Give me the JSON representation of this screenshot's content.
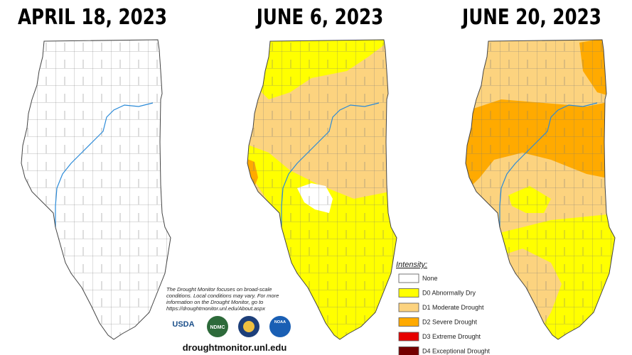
{
  "titles": [
    "APRIL 18, 2023",
    "JUNE 6, 2023",
    "JUNE 20, 2023"
  ],
  "note": [
    "The Drought Monitor focuses on broad-scale",
    "conditions. Local conditions may vary. For more",
    "information on the Drought Monitor, go to",
    "https://droughtmonitor.unl.edu/About.aspx"
  ],
  "logos": [
    "USDA",
    "NDMC",
    "NOAA"
  ],
  "url": "droughtmonitor.unl.edu",
  "legend": {
    "title": "Intensity:",
    "items": [
      {
        "label": "None",
        "color": "#ffffff"
      },
      {
        "label": "D0 Abnormally Dry",
        "color": "#ffff00"
      },
      {
        "label": "D1 Moderate Drought",
        "color": "#fcd37f"
      },
      {
        "label": "D2 Severe Drought",
        "color": "#ffaa00"
      },
      {
        "label": "D3 Extreme Drought",
        "color": "#e60000"
      },
      {
        "label": "D4 Exceptional Drought",
        "color": "#730000"
      }
    ]
  }
}
